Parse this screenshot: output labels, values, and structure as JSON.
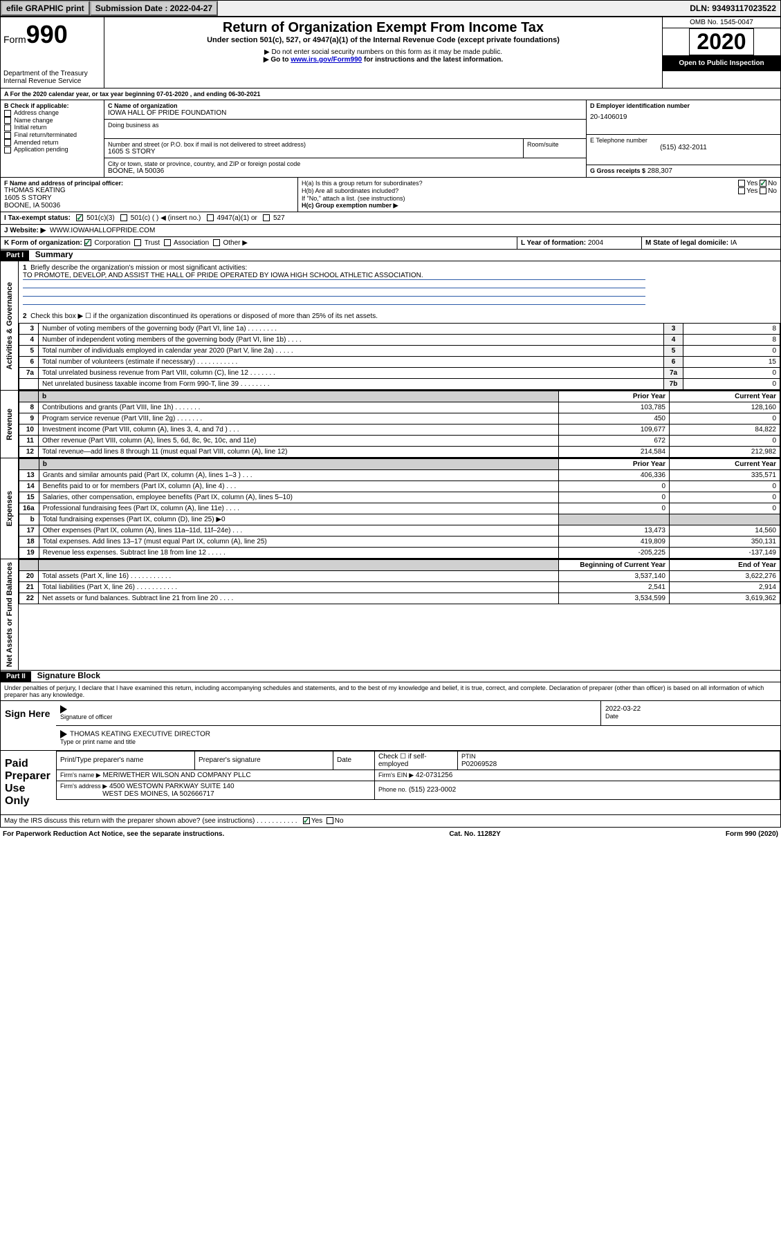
{
  "header": {
    "efile": "efile GRAPHIC print",
    "submission_label": "Submission Date : 2022-04-27",
    "dln": "DLN: 93493117023522"
  },
  "top": {
    "form_word": "Form",
    "form_num": "990",
    "dept": "Department of the Treasury",
    "irs": "Internal Revenue Service",
    "title": "Return of Organization Exempt From Income Tax",
    "subtitle": "Under section 501(c), 527, or 4947(a)(1) of the Internal Revenue Code (except private foundations)",
    "note1": "▶ Do not enter social security numbers on this form as it may be made public.",
    "note2_pre": "▶ Go to ",
    "note2_link": "www.irs.gov/Form990",
    "note2_post": " for instructions and the latest information.",
    "omb": "OMB No. 1545-0047",
    "year": "2020",
    "open": "Open to Public Inspection"
  },
  "a_line": "For the 2020 calendar year, or tax year beginning 07-01-2020   , and ending 06-30-2021",
  "b": {
    "label": "B Check if applicable:",
    "items": [
      "Address change",
      "Name change",
      "Initial return",
      "Final return/terminated",
      "Amended return",
      "Application pending"
    ]
  },
  "c": {
    "name_label": "C Name of organization",
    "name": "IOWA HALL OF PRIDE FOUNDATION",
    "dba_label": "Doing business as",
    "street_label": "Number and street (or P.O. box if mail is not delivered to street address)",
    "street": "1605 S STORY",
    "room_label": "Room/suite",
    "city_label": "City or town, state or province, country, and ZIP or foreign postal code",
    "city": "BOONE, IA  50036"
  },
  "d": {
    "label": "D Employer identification number",
    "value": "20-1406019"
  },
  "e": {
    "label": "E Telephone number",
    "value": "(515) 432-2011"
  },
  "g": {
    "label": "G Gross receipts $",
    "value": "288,307"
  },
  "f": {
    "label": "F Name and address of principal officer:",
    "name": "THOMAS KEATING",
    "street": "1605 S STORY",
    "city": "BOONE, IA  50036"
  },
  "h": {
    "a": "H(a)  Is this a group return for subordinates?",
    "b": "H(b)  Are all subordinates included?",
    "note": "If \"No,\" attach a list. (see instructions)",
    "c": "H(c)  Group exemption number ▶"
  },
  "i": {
    "label": "I  Tax-exempt status:",
    "opts": [
      "501(c)(3)",
      "501(c) (  ) ◀ (insert no.)",
      "4947(a)(1) or",
      "527"
    ]
  },
  "j": {
    "label": "J  Website: ▶",
    "value": "WWW.IOWAHALLOFPRIDE.COM"
  },
  "k": {
    "label": "K Form of organization:",
    "corp": "Corporation",
    "trust": "Trust",
    "assoc": "Association",
    "other": "Other ▶"
  },
  "l": {
    "label": "L Year of formation:",
    "value": "2004"
  },
  "m": {
    "label": "M State of legal domicile:",
    "value": "IA"
  },
  "part1": {
    "header": "Part I",
    "title": "Summary",
    "q1": "Briefly describe the organization's mission or most significant activities:",
    "mission": "TO PROMOTE, DEVELOP, AND ASSIST THE HALL OF PRIDE OPERATED BY IOWA HIGH SCHOOL ATHLETIC ASSOCIATION.",
    "q2": "Check this box ▶ ☐  if the organization discontinued its operations or disposed of more than 25% of its net assets.",
    "rows_gov": [
      {
        "n": "3",
        "t": "Number of voting members of the governing body (Part VI, line 1a)   .    .    .    .    .    .    .    .",
        "box": "3",
        "v": "8"
      },
      {
        "n": "4",
        "t": "Number of independent voting members of the governing body (Part VI, line 1b)    .    .    .    .",
        "box": "4",
        "v": "8"
      },
      {
        "n": "5",
        "t": "Total number of individuals employed in calendar year 2020 (Part V, line 2a)   .    .    .    .    .",
        "box": "5",
        "v": "0"
      },
      {
        "n": "6",
        "t": "Total number of volunteers (estimate if necessary)    .    .    .    .    .    .    .    .    .    .    .",
        "box": "6",
        "v": "15"
      },
      {
        "n": "7a",
        "t": "Total unrelated business revenue from Part VIII, column (C), line 12   .    .    .    .    .    .    .",
        "box": "7a",
        "v": "0"
      },
      {
        "n": "",
        "t": "Net unrelated business taxable income from Form 990-T, line 39   .    .    .    .    .    .    .    .",
        "box": "7b",
        "v": "0"
      }
    ],
    "col_headers": {
      "b": "b",
      "prior": "Prior Year",
      "current": "Current Year"
    },
    "rev": [
      {
        "n": "8",
        "t": "Contributions and grants (Part VIII, line 1h)    .    .    .    .    .    .    .",
        "p": "103,785",
        "c": "128,160"
      },
      {
        "n": "9",
        "t": "Program service revenue (Part VIII, line 2g)    .    .    .    .    .    .    .",
        "p": "450",
        "c": "0"
      },
      {
        "n": "10",
        "t": "Investment income (Part VIII, column (A), lines 3, 4, and 7d )   .    .    .",
        "p": "109,677",
        "c": "84,822"
      },
      {
        "n": "11",
        "t": "Other revenue (Part VIII, column (A), lines 5, 6d, 8c, 9c, 10c, and 11e)",
        "p": "672",
        "c": "0"
      },
      {
        "n": "12",
        "t": "Total revenue—add lines 8 through 11 (must equal Part VIII, column (A), line 12)",
        "p": "214,584",
        "c": "212,982"
      }
    ],
    "exp": [
      {
        "n": "13",
        "t": "Grants and similar amounts paid (Part IX, column (A), lines 1–3 )   .    .    .",
        "p": "406,336",
        "c": "335,571"
      },
      {
        "n": "14",
        "t": "Benefits paid to or for members (Part IX, column (A), line 4)   .    .    .",
        "p": "0",
        "c": "0"
      },
      {
        "n": "15",
        "t": "Salaries, other compensation, employee benefits (Part IX, column (A), lines 5–10)",
        "p": "0",
        "c": "0"
      },
      {
        "n": "16a",
        "t": "Professional fundraising fees (Part IX, column (A), line 11e)   .    .    .    .",
        "p": "0",
        "c": "0"
      },
      {
        "n": "b",
        "t": "Total fundraising expenses (Part IX, column (D), line 25) ▶0",
        "p": "",
        "c": "",
        "shade": true
      },
      {
        "n": "17",
        "t": "Other expenses (Part IX, column (A), lines 11a–11d, 11f–24e)   .    .    .",
        "p": "13,473",
        "c": "14,560"
      },
      {
        "n": "18",
        "t": "Total expenses. Add lines 13–17 (must equal Part IX, column (A), line 25)",
        "p": "419,809",
        "c": "350,131"
      },
      {
        "n": "19",
        "t": "Revenue less expenses. Subtract line 18 from line 12   .    .    .    .    .",
        "p": "-205,225",
        "c": "-137,149"
      }
    ],
    "net_headers": {
      "b": "Beginning of Current Year",
      "e": "End of Year"
    },
    "net": [
      {
        "n": "20",
        "t": "Total assets (Part X, line 16)   .    .    .    .    .    .    .    .    .    .    .",
        "p": "3,537,140",
        "c": "3,622,276"
      },
      {
        "n": "21",
        "t": "Total liabilities (Part X, line 26)   .    .    .    .    .    .    .    .    .    .    .",
        "p": "2,541",
        "c": "2,914"
      },
      {
        "n": "22",
        "t": "Net assets or fund balances. Subtract line 21 from line 20   .    .    .    .",
        "p": "3,534,599",
        "c": "3,619,362"
      }
    ],
    "vt_gov": "Activities & Governance",
    "vt_rev": "Revenue",
    "vt_exp": "Expenses",
    "vt_net": "Net Assets or Fund Balances"
  },
  "part2": {
    "header": "Part II",
    "title": "Signature Block",
    "decl": "Under penalties of perjury, I declare that I have examined this return, including accompanying schedules and statements, and to the best of my knowledge and belief, it is true, correct, and complete. Declaration of preparer (other than officer) is based on all information of which preparer has any knowledge."
  },
  "sign": {
    "label": "Sign Here",
    "sig_label": "Signature of officer",
    "date": "2022-03-22",
    "date_label": "Date",
    "name": "THOMAS KEATING  EXECUTIVE DIRECTOR",
    "name_label": "Type or print name and title"
  },
  "paid": {
    "label": "Paid Preparer Use Only",
    "h1": "Print/Type preparer's name",
    "h2": "Preparer's signature",
    "h3": "Date",
    "h4": "Check ☐ if self-employed",
    "h5": "PTIN",
    "ptin": "P02069528",
    "firm_label": "Firm's name    ▶",
    "firm": "MERIWETHER WILSON AND COMPANY PLLC",
    "ein_label": "Firm's EIN ▶",
    "ein": "42-0731256",
    "addr_label": "Firm's address ▶",
    "addr1": "4500 WESTOWN PARKWAY SUITE 140",
    "addr2": "WEST DES MOINES, IA  502666717",
    "phone_label": "Phone no.",
    "phone": "(515) 223-0002",
    "discuss": "May the IRS discuss this return with the preparer shown above? (see instructions)    .    .    .    .    .    .    .    .    .    .    ."
  },
  "footer": {
    "left": "For Paperwork Reduction Act Notice, see the separate instructions.",
    "mid": "Cat. No. 11282Y",
    "right": "Form 990 (2020)"
  },
  "yesno": {
    "yes": "Yes",
    "no": "No"
  }
}
